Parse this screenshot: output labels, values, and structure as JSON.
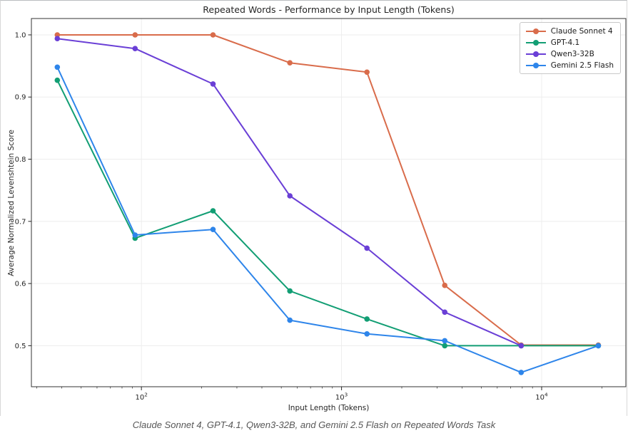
{
  "figure": {
    "title": "Repeated Words - Performance by Input Length (Tokens)",
    "xlabel": "Input Length (Tokens)",
    "ylabel": "Average Normalized Levenshtein Score"
  },
  "caption": "Claude Sonnet 4, GPT-4.1, Qwen3-32B, and Gemini 2.5 Flash on Repeated Words Task",
  "chart_data": {
    "type": "line",
    "title": "Repeated Words - Performance by Input Length (Tokens)",
    "xlabel": "Input Length (Tokens)",
    "ylabel": "Average Normalized Levenshtein Score",
    "x_scale": "log",
    "grid": true,
    "legend_position": "upper right",
    "x": [
      38,
      93,
      228,
      552,
      1340,
      3280,
      7900,
      19200
    ],
    "xlim": [
      28.2,
      26350
    ],
    "ylim": [
      0.434,
      1.0263
    ],
    "y_ticks": [
      0.5,
      0.6,
      0.7,
      0.8,
      0.9,
      1.0
    ],
    "x_major_ticks": [
      100,
      1000,
      10000
    ],
    "series": [
      {
        "name": "Claude Sonnet 4",
        "color": "#d96c4b",
        "values": [
          1.0,
          1.0,
          1.0,
          0.955,
          0.94,
          0.597,
          0.501,
          0.501
        ]
      },
      {
        "name": "GPT-4.1",
        "color": "#129e74",
        "values": [
          0.927,
          0.673,
          0.717,
          0.588,
          0.543,
          0.5,
          0.5,
          0.5
        ]
      },
      {
        "name": "Qwen3-32B",
        "color": "#6a3fd6",
        "values": [
          0.994,
          0.978,
          0.921,
          0.741,
          0.657,
          0.554,
          0.5,
          null
        ]
      },
      {
        "name": "Gemini 2.5 Flash",
        "color": "#2e85ea",
        "values": [
          0.948,
          0.678,
          0.687,
          0.541,
          0.519,
          0.508,
          0.457,
          0.5
        ]
      }
    ]
  }
}
